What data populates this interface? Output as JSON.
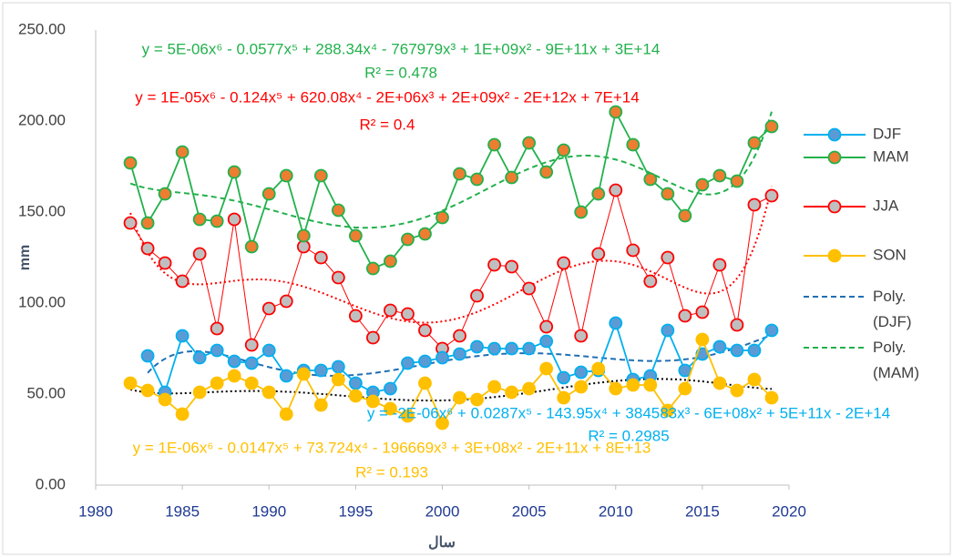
{
  "chart_data": {
    "type": "line",
    "x": [
      1982,
      1983,
      1984,
      1985,
      1986,
      1987,
      1988,
      1989,
      1990,
      1991,
      1992,
      1993,
      1994,
      1995,
      1996,
      1997,
      1998,
      1999,
      2000,
      2001,
      2002,
      2003,
      2004,
      2005,
      2006,
      2007,
      2008,
      2009,
      2010,
      2011,
      2012,
      2013,
      2014,
      2015,
      2016,
      2017,
      2018,
      2019
    ],
    "xlabel": "سال",
    "ylabel": "mm",
    "xlim": [
      1980,
      2020
    ],
    "xticks": [
      1980,
      1985,
      1990,
      1995,
      2000,
      2005,
      2010,
      2015,
      2020
    ],
    "ylim": [
      0,
      250
    ],
    "yticks": [
      {
        "value": 0,
        "label": "0.00"
      },
      {
        "value": 50,
        "label": "50.00"
      },
      {
        "value": 100,
        "label": "100.00"
      },
      {
        "value": 150,
        "label": "150.00"
      },
      {
        "value": 200,
        "label": "200.00"
      },
      {
        "value": 250,
        "label": "250.00"
      }
    ],
    "legend": "right",
    "series": [
      {
        "name": "DJF",
        "color": "#00b0f0",
        "marker_fill": "#5b9bd5",
        "values": [
          null,
          71,
          51,
          82,
          70,
          74,
          68,
          67,
          74,
          60,
          63,
          63,
          65,
          56,
          51,
          53,
          67,
          68,
          70,
          72,
          76,
          75,
          75,
          75,
          79,
          59,
          62,
          63,
          89,
          58,
          60,
          85,
          63,
          72,
          76,
          74,
          74,
          85
        ],
        "trendline": {
          "order": 6,
          "color": "#1f6fb5",
          "dash": "6,4",
          "name": "Poly. (DJF)",
          "label_color": "#00b0f0",
          "equation": "y = -2E-06x⁶ + 0.0287x⁵ - 143.95x⁴ + 384583x³ - 6E+08x² + 5E+11x - 2E+14",
          "r2": "R² = 0.2985"
        }
      },
      {
        "name": "MAM",
        "color": "#22b14c",
        "marker_fill": "#ed7d31",
        "values": [
          177,
          144,
          160,
          183,
          146,
          145,
          172,
          131,
          160,
          170,
          137,
          170,
          151,
          137,
          119,
          123,
          135,
          138,
          147,
          171,
          168,
          187,
          169,
          188,
          172,
          184,
          150,
          160,
          205,
          187,
          168,
          160,
          148,
          165,
          170,
          167,
          188,
          197
        ],
        "trendline": {
          "order": 6,
          "color": "#22b14c",
          "dash": "6,4",
          "name": "Poly. (MAM)",
          "label_color": "#22b14c",
          "equation": "y = 5E-06x⁶ - 0.0577x⁵ + 288.34x⁴ - 767979x³ + 1E+09x² - 9E+11x + 3E+14",
          "r2": "R² = 0.478"
        }
      },
      {
        "name": "JJA",
        "color": "#ff0000",
        "marker_fill": "#bfbfbf",
        "values": [
          144,
          130,
          122,
          112,
          127,
          86,
          146,
          77,
          97,
          101,
          131,
          125,
          114,
          93,
          81,
          96,
          94,
          85,
          75,
          82,
          104,
          121,
          120,
          108,
          87,
          122,
          82,
          127,
          162,
          129,
          112,
          125,
          93,
          95,
          121,
          88,
          154,
          159
        ],
        "trendline": {
          "order": 6,
          "color": "#ff0000",
          "dash": "2,3",
          "label_color": "#ff0000",
          "equation": "y = 1E-05x⁶ - 0.124x⁵ + 620.08x⁴ - 2E+06x³ + 2E+09x² - 2E+12x + 7E+14",
          "r2": "R² = 0.4"
        }
      },
      {
        "name": "SON",
        "color": "#ffc000",
        "marker_fill": "#ffc000",
        "values": [
          56,
          52,
          47,
          39,
          51,
          56,
          60,
          56,
          51,
          39,
          61,
          44,
          58,
          49,
          46,
          42,
          38,
          56,
          34,
          48,
          47,
          54,
          51,
          53,
          64,
          48,
          54,
          64,
          53,
          55,
          55,
          41,
          53,
          80,
          56,
          52,
          58,
          48
        ],
        "trendline": {
          "order": 6,
          "color": "#000000",
          "dash": "2,3",
          "label_color": "#ffc000",
          "equation": "y = 1E-06x⁶ - 0.0147x⁵ + 73.724x⁴ - 196669x³ + 3E+08x² - 2E+11x + 8E+13",
          "r2": "R² = 0.193"
        }
      }
    ]
  }
}
